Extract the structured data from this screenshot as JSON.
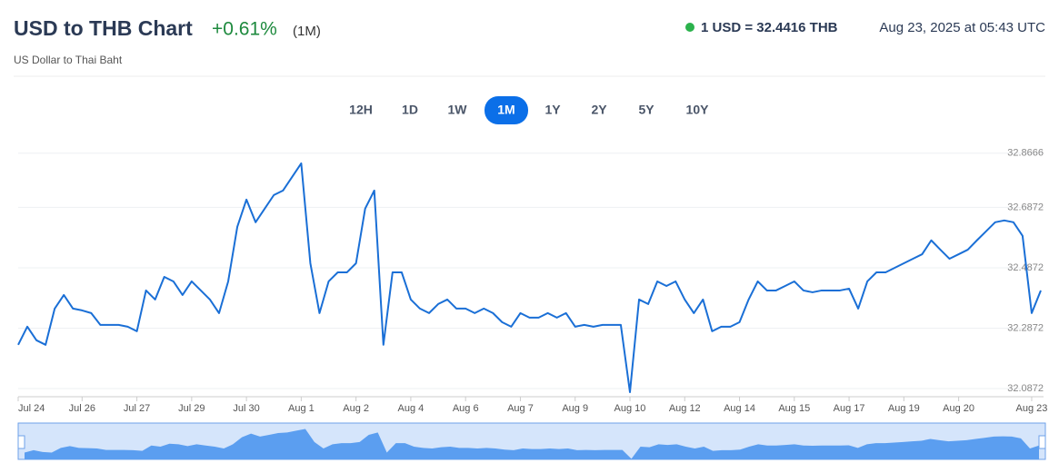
{
  "header": {
    "title": "USD to THB Chart",
    "change": "+0.61%",
    "period": "(1M)",
    "subtitle": "US Dollar to Thai Baht",
    "rate": "1 USD = 32.4416 THB",
    "timestamp": "Aug 23, 2025 at 05:43 UTC"
  },
  "ranges": {
    "buttons": [
      "12H",
      "1D",
      "1W",
      "1M",
      "1Y",
      "2Y",
      "5Y",
      "10Y"
    ],
    "active_index": 3
  },
  "chart_data": {
    "type": "line",
    "categories": [
      "Jul 24",
      null,
      null,
      null,
      null,
      null,
      null,
      "Jul 26",
      null,
      null,
      null,
      null,
      null,
      "Jul 27",
      null,
      null,
      null,
      null,
      null,
      "Jul 29",
      null,
      null,
      null,
      null,
      null,
      "Jul 30",
      null,
      null,
      null,
      null,
      null,
      "Aug 1",
      null,
      null,
      null,
      null,
      null,
      "Aug 2",
      null,
      null,
      null,
      null,
      null,
      "Aug 4",
      null,
      null,
      null,
      null,
      null,
      "Aug 6",
      null,
      null,
      null,
      null,
      null,
      "Aug 7",
      null,
      null,
      null,
      null,
      null,
      "Aug 9",
      null,
      null,
      null,
      null,
      null,
      "Aug 10",
      null,
      null,
      null,
      null,
      null,
      "Aug 12",
      null,
      null,
      null,
      null,
      null,
      "Aug 14",
      null,
      null,
      null,
      null,
      null,
      "Aug 15",
      null,
      null,
      null,
      null,
      null,
      "Aug 17",
      null,
      null,
      null,
      null,
      null,
      "Aug 19",
      null,
      null,
      null,
      null,
      null,
      "Aug 20",
      null,
      null,
      null,
      null,
      null,
      null,
      null,
      "Aug 23",
      null
    ],
    "series": [
      {
        "name": "USD/THB",
        "color": "#1a6fd6",
        "values": [
          32.232,
          32.292,
          32.247,
          32.232,
          32.352,
          32.397,
          32.352,
          32.346,
          32.337,
          32.298,
          32.298,
          32.298,
          32.292,
          32.277,
          32.412,
          32.382,
          32.457,
          32.442,
          32.397,
          32.442,
          32.412,
          32.382,
          32.337,
          32.442,
          32.623,
          32.713,
          32.638,
          32.683,
          32.728,
          32.743,
          32.788,
          32.833,
          32.502,
          32.337,
          32.442,
          32.472,
          32.472,
          32.502,
          32.683,
          32.743,
          32.232,
          32.472,
          32.472,
          32.382,
          32.352,
          32.337,
          32.367,
          32.382,
          32.352,
          32.352,
          32.337,
          32.352,
          32.337,
          32.307,
          32.292,
          32.337,
          32.322,
          32.322,
          32.337,
          32.322,
          32.337,
          32.292,
          32.298,
          32.292,
          32.298,
          32.298,
          32.298,
          32.075,
          32.382,
          32.367,
          32.442,
          32.427,
          32.442,
          32.382,
          32.337,
          32.382,
          32.277,
          32.292,
          32.292,
          32.307,
          32.382,
          32.442,
          32.412,
          32.412,
          32.427,
          32.442,
          32.412,
          32.406,
          32.412,
          32.412,
          32.412,
          32.418,
          32.352,
          32.442,
          32.472,
          32.472,
          32.487,
          32.502,
          32.517,
          32.532,
          32.578,
          32.547,
          32.517,
          32.532,
          32.547,
          32.578,
          32.608,
          32.638,
          32.644,
          32.638,
          32.593,
          32.337,
          32.412
        ]
      }
    ],
    "ylim": [
      32.06,
      32.89
    ],
    "yticks": [
      32.0872,
      32.2872,
      32.4872,
      32.6872,
      32.8666
    ],
    "grid": true
  }
}
